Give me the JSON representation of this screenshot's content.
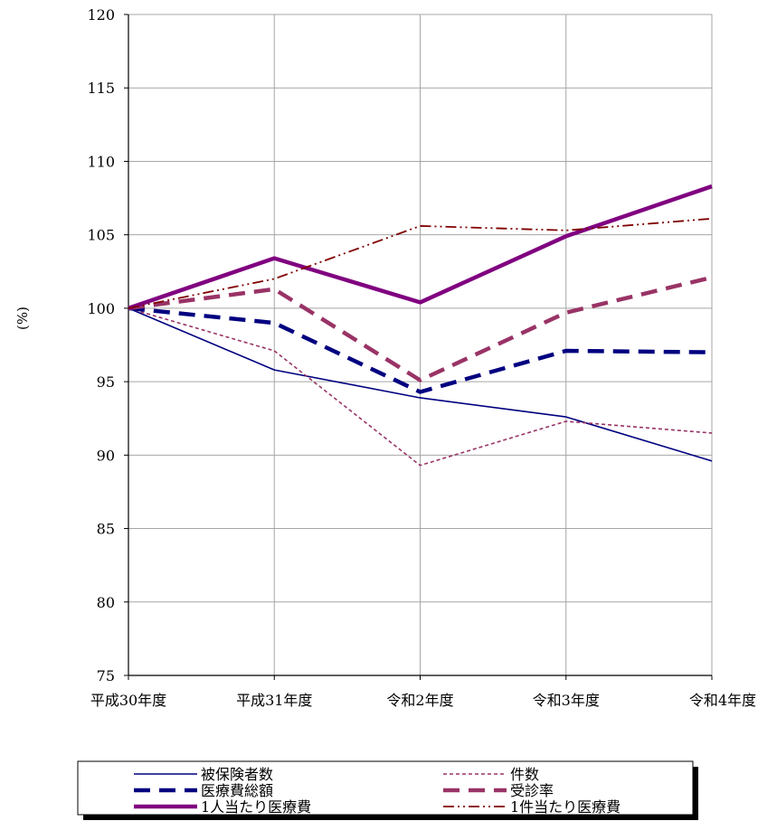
{
  "chart_data": {
    "type": "line",
    "title": "",
    "xlabel": "",
    "ylabel": "(%)",
    "categories": [
      "平成30年度",
      "平成31年度",
      "令和2年度",
      "令和3年度",
      "令和4年度"
    ],
    "ylim": [
      75,
      120
    ],
    "yticks": [
      75,
      80,
      85,
      90,
      95,
      100,
      105,
      110,
      115,
      120
    ],
    "grid": true,
    "legend_position": "bottom",
    "series": [
      {
        "name": "被保険者数",
        "values": [
          100.0,
          95.8,
          93.9,
          92.6,
          89.6
        ],
        "color": "#000080",
        "style": "solid-thin"
      },
      {
        "name": "件数",
        "values": [
          100.0,
          97.1,
          89.3,
          92.3,
          91.5
        ],
        "color": "#993366",
        "style": "dashed-thin"
      },
      {
        "name": "医療費総額",
        "values": [
          100.0,
          99.0,
          94.3,
          97.1,
          97.0
        ],
        "color": "#000080",
        "style": "dashed-thick"
      },
      {
        "name": "受診率",
        "values": [
          100.0,
          101.3,
          95.1,
          99.7,
          102.1
        ],
        "color": "#993366",
        "style": "dashed-thick"
      },
      {
        "name": "1人当たり医療費",
        "values": [
          100.0,
          103.4,
          100.4,
          104.9,
          108.3
        ],
        "color": "#800080",
        "style": "solid-thick"
      },
      {
        "name": "1件当たり医療費",
        "values": [
          100.0,
          102.0,
          105.6,
          105.3,
          106.1
        ],
        "color": "#800000",
        "style": "dash-dot-dot"
      }
    ]
  }
}
